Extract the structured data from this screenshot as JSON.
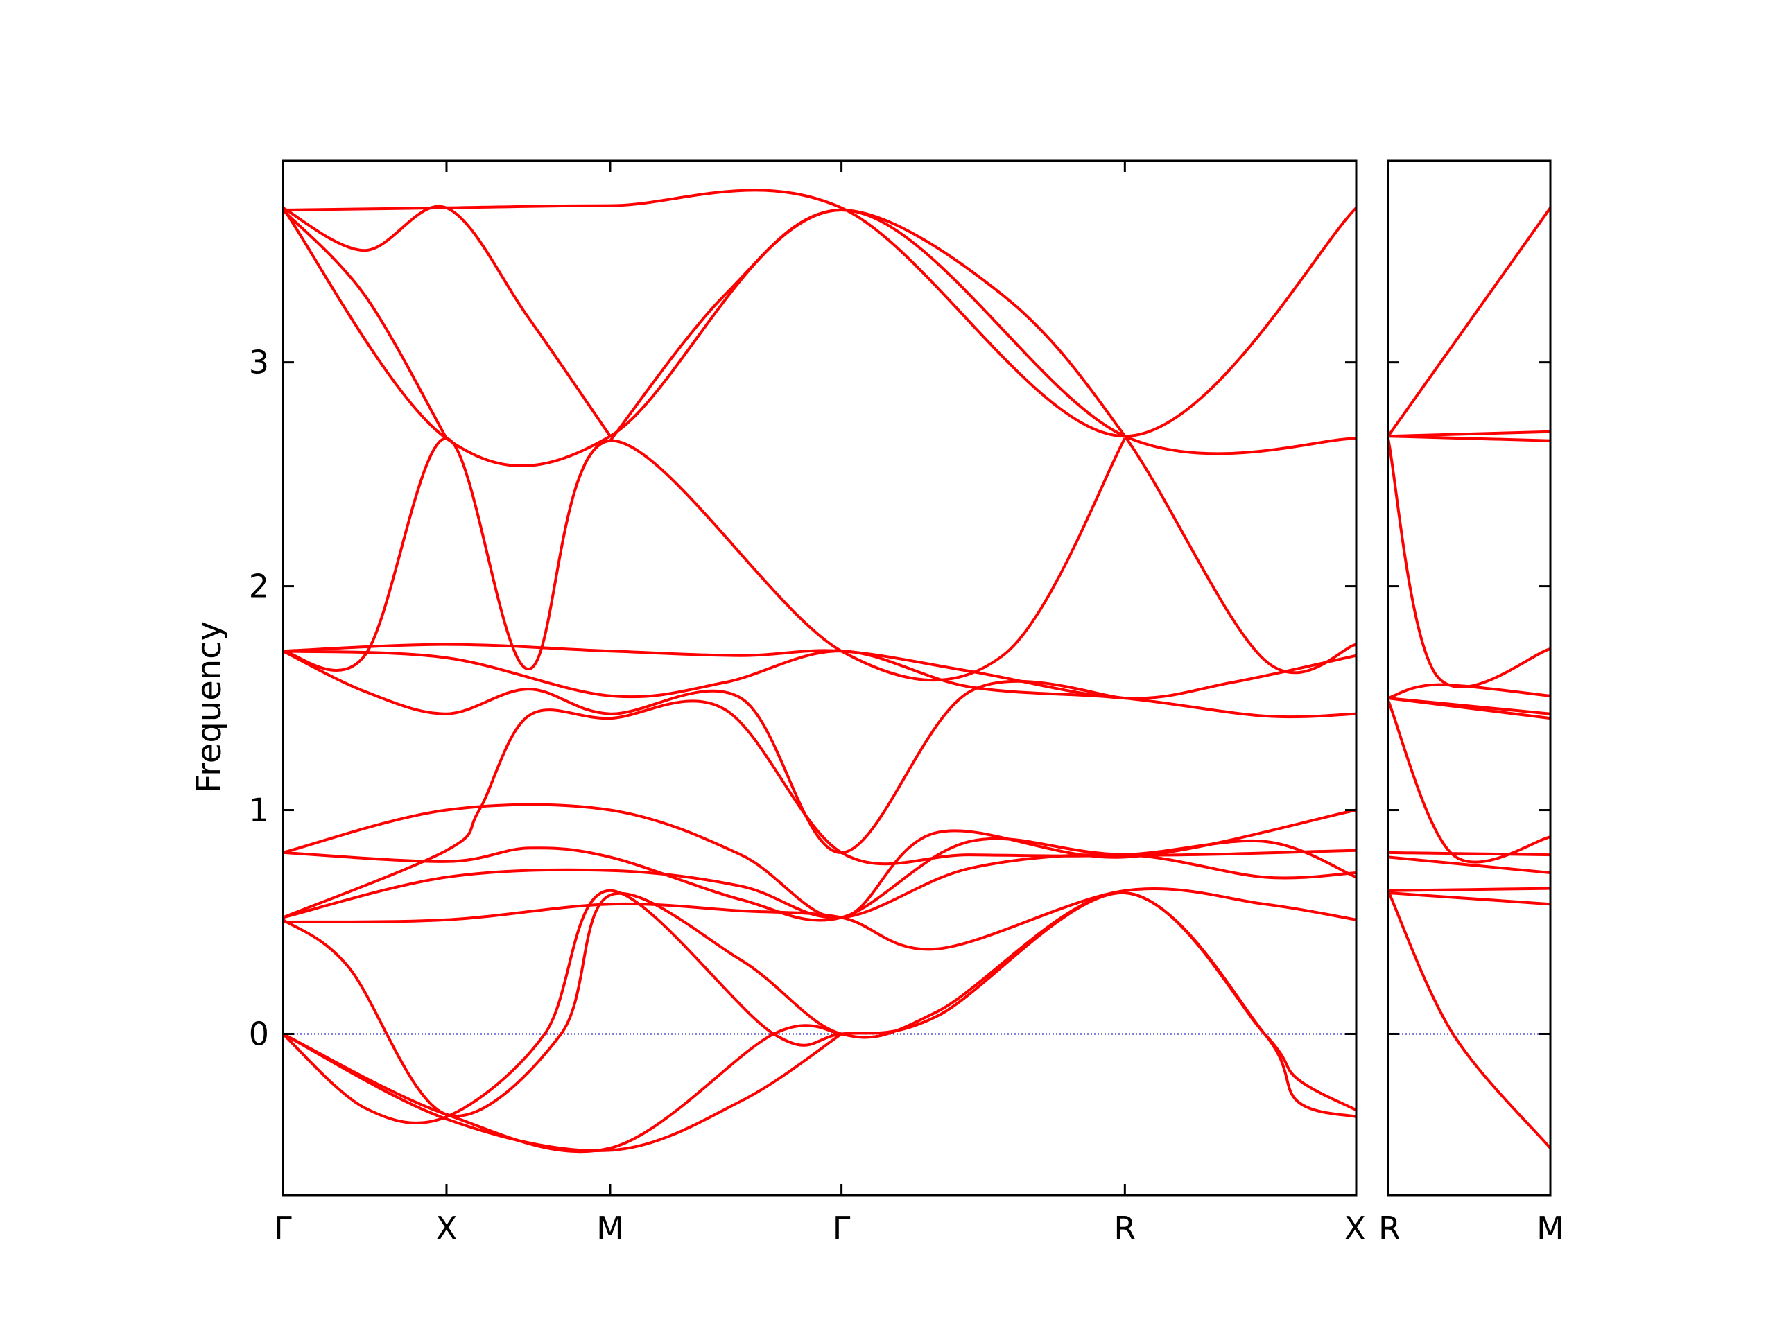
{
  "chart_data": {
    "type": "line",
    "ylabel": "Frequency",
    "ylim": [
      -0.72,
      3.9
    ],
    "yticks": [
      0,
      1,
      2,
      3
    ],
    "grid": false,
    "colors": {
      "band": "#ff0000",
      "zero_line": "#0000cc",
      "axes": "#000000"
    },
    "panels": [
      {
        "name": "main",
        "ticks": [
          {
            "label": "Γ",
            "pos": 0
          },
          {
            "label": "X",
            "pos": 0.5
          },
          {
            "label": "M",
            "pos": 1.0
          },
          {
            "label": "Γ",
            "pos": 1.707
          },
          {
            "label": "R",
            "pos": 2.573
          },
          {
            "label": "X",
            "pos": 3.28
          }
        ],
        "xrange": [
          0,
          3.28
        ],
        "bands": [
          {
            "x": [
              0,
              0.5,
              1.0,
              1.707,
              2.573,
              3.28
            ],
            "y": [
              3.68,
              3.69,
              3.7,
              3.69,
              2.67,
              3.69
            ]
          },
          {
            "x": [
              0,
              0.5,
              1.0,
              1.707,
              2.573,
              3.28
            ],
            "y": [
              3.69,
              2.66,
              2.67,
              3.68,
              2.67,
              2.66
            ]
          },
          {
            "x": [
              0,
              0.25,
              0.5,
              0.75,
              1.0
            ],
            "y": [
              3.69,
              3.5,
              3.69,
              3.2,
              2.67
            ]
          },
          {
            "x": [
              0,
              0.25,
              0.5
            ],
            "y": [
              3.68,
              3.3,
              2.66
            ]
          },
          {
            "x": [
              0,
              0.25,
              0.5,
              0.75,
              1.0,
              1.707,
              2.2,
              2.573
            ],
            "y": [
              1.71,
              1.69,
              2.66,
              1.63,
              2.65,
              1.71,
              1.69,
              2.66
            ]
          },
          {
            "x": [
              1.0,
              1.35,
              1.707,
              2.2,
              2.573,
              3.0,
              3.28
            ],
            "y": [
              2.65,
              3.3,
              3.68,
              3.3,
              2.67,
              1.67,
              1.74
            ]
          },
          {
            "x": [
              0,
              0.5,
              1.0,
              1.4,
              1.707,
              2.1,
              2.573,
              2.9,
              3.28
            ],
            "y": [
              1.71,
              1.74,
              1.71,
              1.69,
              1.71,
              1.62,
              1.5,
              1.57,
              1.69
            ]
          },
          {
            "x": [
              0,
              0.5,
              1.0,
              1.35,
              1.707,
              2.1,
              2.573,
              3.0,
              3.28
            ],
            "y": [
              1.71,
              1.68,
              1.51,
              1.57,
              1.71,
              1.55,
              1.5,
              1.42,
              1.43
            ]
          },
          {
            "x": [
              0,
              0.25,
              0.5,
              0.75,
              1.0,
              1.4,
              1.707,
              2.1,
              2.573
            ],
            "y": [
              1.71,
              1.53,
              1.43,
              1.54,
              1.43,
              1.5,
              0.81,
              1.53,
              1.5
            ]
          },
          {
            "x": [
              0,
              0.5,
              1.0,
              1.4,
              1.707,
              2.0,
              2.573,
              3.28
            ],
            "y": [
              0.81,
              1.0,
              1.0,
              0.8,
              0.52,
              0.9,
              0.79,
              1.0
            ]
          },
          {
            "x": [
              0,
              0.5,
              0.75,
              1.0,
              1.4,
              1.707,
              2.1,
              2.573,
              3.28
            ],
            "y": [
              0.81,
              0.77,
              0.83,
              0.79,
              0.6,
              0.52,
              0.86,
              0.8,
              0.82
            ]
          },
          {
            "x": [
              0,
              0.5,
              0.6,
              0.75,
              1.0,
              1.35,
              1.707,
              2.1,
              2.573,
              3.0,
              3.28
            ],
            "y": [
              0.52,
              0.82,
              1.0,
              1.42,
              1.41,
              1.45,
              0.81,
              0.8,
              0.8,
              0.86,
              0.7
            ]
          },
          {
            "x": [
              0,
              0.5,
              1.0,
              1.4,
              1.707,
              2.1,
              2.573,
              3.0,
              3.28
            ],
            "y": [
              0.52,
              0.7,
              0.73,
              0.66,
              0.52,
              0.74,
              0.8,
              0.7,
              0.72
            ]
          },
          {
            "x": [
              0,
              0.5,
              1.0,
              1.4,
              1.707,
              2.0,
              2.573,
              3.0,
              3.28
            ],
            "y": [
              0.5,
              0.51,
              0.58,
              0.55,
              0.52,
              0.38,
              0.64,
              0.58,
              0.51
            ]
          },
          {
            "x": [
              0,
              0.2,
              0.5,
              0.85,
              1.0,
              1.4,
              1.707,
              2.0,
              2.573,
              3.0,
              3.1,
              3.28
            ],
            "y": [
              0.51,
              0.3,
              -0.36,
              0.0,
              0.62,
              0.33,
              0.0,
              0.1,
              0.63,
              0.0,
              -0.3,
              -0.37
            ]
          },
          {
            "x": [
              0,
              0.25,
              0.5,
              0.8,
              1.0,
              1.5,
              1.707,
              2.0,
              2.573,
              3.0,
              3.1,
              3.28
            ],
            "y": [
              0.0,
              -0.33,
              -0.37,
              0.0,
              0.64,
              0.0,
              0.0,
              0.08,
              0.63,
              0.0,
              -0.2,
              -0.34
            ]
          },
          {
            "x": [
              0,
              0.5,
              1.0,
              1.5,
              1.707
            ],
            "y": [
              0.0,
              -0.36,
              -0.51,
              0.0,
              0.0
            ]
          },
          {
            "x": [
              0,
              0.5,
              1.0,
              1.4,
              1.707
            ],
            "y": [
              0.0,
              -0.38,
              -0.52,
              -0.3,
              0.0
            ]
          }
        ]
      },
      {
        "name": "side",
        "ticks": [
          {
            "label": "R",
            "pos": 0
          },
          {
            "label": "M",
            "pos": 0.5
          }
        ],
        "xrange": [
          0,
          0.5
        ],
        "bands": [
          {
            "x": [
              0,
              0.5
            ],
            "y": [
              2.67,
              3.69
            ]
          },
          {
            "x": [
              0,
              0.5
            ],
            "y": [
              2.67,
              2.69
            ]
          },
          {
            "x": [
              0,
              0.5
            ],
            "y": [
              2.67,
              2.65
            ]
          },
          {
            "x": [
              0,
              0.15,
              0.5
            ],
            "y": [
              2.66,
              1.6,
              1.72
            ]
          },
          {
            "x": [
              0,
              0.15,
              0.5
            ],
            "y": [
              1.5,
              1.56,
              1.51
            ]
          },
          {
            "x": [
              0,
              0.5
            ],
            "y": [
              1.5,
              1.43
            ]
          },
          {
            "x": [
              0,
              0.5
            ],
            "y": [
              1.5,
              1.41
            ]
          },
          {
            "x": [
              0,
              0.2,
              0.5
            ],
            "y": [
              1.49,
              0.8,
              0.88
            ]
          },
          {
            "x": [
              0,
              0.5
            ],
            "y": [
              0.81,
              0.8
            ]
          },
          {
            "x": [
              0,
              0.5
            ],
            "y": [
              0.79,
              0.72
            ]
          },
          {
            "x": [
              0,
              0.5
            ],
            "y": [
              0.64,
              0.65
            ]
          },
          {
            "x": [
              0,
              0.5
            ],
            "y": [
              0.63,
              0.58
            ]
          },
          {
            "x": [
              0,
              0.2,
              0.5
            ],
            "y": [
              0.64,
              0.0,
              -0.51
            ]
          }
        ]
      }
    ]
  }
}
